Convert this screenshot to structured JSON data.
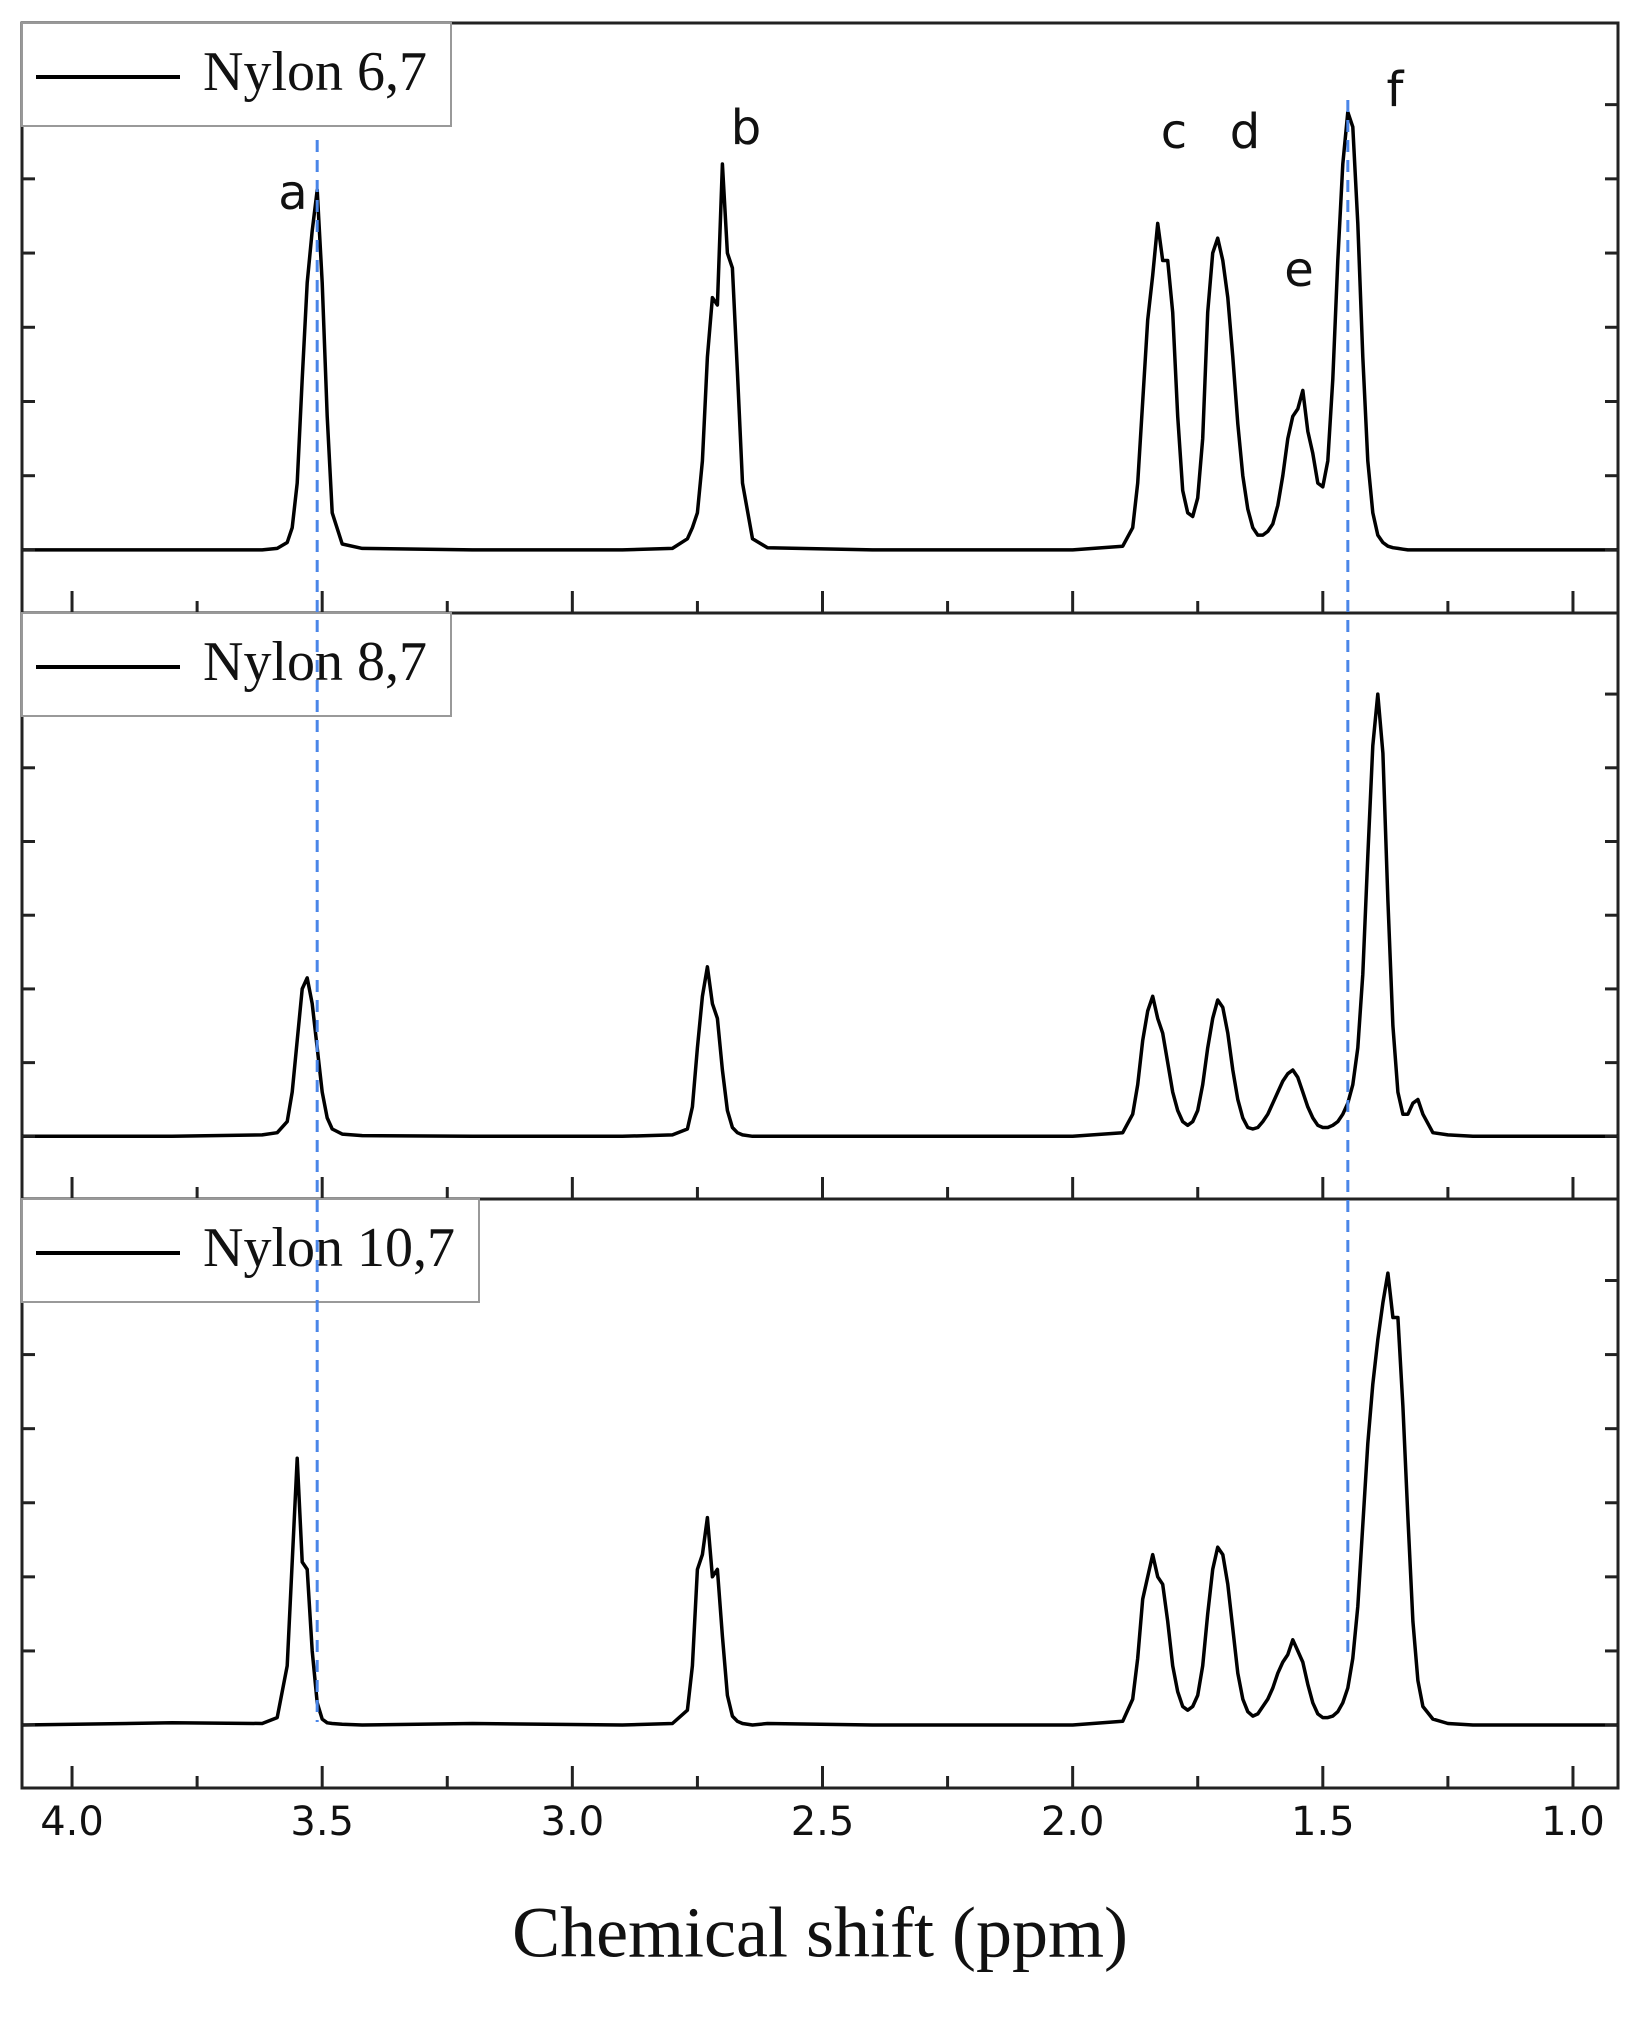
{
  "chart_data": [
    {
      "type": "line",
      "xlim": [
        4.1,
        0.91
      ],
      "ylim": [
        -0.85,
        7.1
      ],
      "xticks": [
        {
          "value": 4,
          "label": "4.0"
        },
        3.5,
        {
          "value": 3,
          "label": "3.0"
        },
        2.5,
        {
          "value": 2,
          "label": "2.0"
        },
        1.5,
        {
          "value": 1,
          "label": "1.0"
        }
      ],
      "xminorticks": [
        3.75,
        3.25,
        2.75,
        2.25,
        1.75,
        1.25
      ],
      "yticks": [
        0,
        1,
        2,
        3,
        4,
        5,
        6
      ],
      "annotations": [
        "a",
        "b",
        "c",
        "d",
        "e",
        "f"
      ],
      "reference_lines": [
        3.51,
        1.45
      ],
      "reference_color": "#4a86e8",
      "x": [
        4.1,
        3.8,
        3.62,
        3.59,
        3.57,
        3.56,
        3.55,
        3.54,
        3.53,
        3.52,
        3.51,
        3.5,
        3.49,
        3.48,
        3.46,
        3.42,
        3.2,
        2.9,
        2.8,
        2.77,
        2.76,
        2.75,
        2.74,
        2.73,
        2.72,
        2.71,
        2.7,
        2.69,
        2.68,
        2.67,
        2.66,
        2.64,
        2.61,
        2.4,
        2.0,
        1.9,
        1.88,
        1.87,
        1.86,
        1.85,
        1.84,
        1.83,
        1.82,
        1.81,
        1.8,
        1.79,
        1.78,
        1.77,
        1.76,
        1.75,
        1.74,
        1.73,
        1.72,
        1.71,
        1.7,
        1.69,
        1.68,
        1.67,
        1.66,
        1.65,
        1.64,
        1.63,
        1.62,
        1.61,
        1.6,
        1.59,
        1.58,
        1.57,
        1.56,
        1.55,
        1.54,
        1.53,
        1.52,
        1.51,
        1.5,
        1.49,
        1.48,
        1.47,
        1.46,
        1.45,
        1.44,
        1.43,
        1.42,
        1.41,
        1.4,
        1.39,
        1.38,
        1.37,
        1.36,
        1.35,
        1.34,
        1.33,
        1.32,
        1.31,
        1.3,
        1.28,
        1.25,
        1.2,
        1.1,
        0.91
      ],
      "series": [
        {
          "name": "Nylon 6,7",
          "color": "#000000",
          "values": [
            0,
            0,
            0,
            0.02,
            0.1,
            0.3,
            0.9,
            2.3,
            3.6,
            4.3,
            4.85,
            3.6,
            1.8,
            0.5,
            0.08,
            0.02,
            0,
            0,
            0.02,
            0.15,
            0.3,
            0.5,
            1.2,
            2.6,
            3.4,
            3.3,
            5.2,
            4.0,
            3.8,
            2.4,
            0.9,
            0.15,
            0.03,
            0,
            0,
            0.05,
            0.3,
            0.9,
            2.0,
            3.1,
            3.7,
            4.4,
            3.9,
            3.9,
            3.2,
            1.8,
            0.8,
            0.5,
            0.45,
            0.7,
            1.5,
            3.2,
            4.0,
            4.2,
            3.9,
            3.4,
            2.6,
            1.7,
            1.0,
            0.55,
            0.3,
            0.2,
            0.2,
            0.25,
            0.35,
            0.6,
            1.0,
            1.5,
            1.8,
            1.9,
            2.15,
            1.6,
            1.3,
            0.9,
            0.85,
            1.2,
            2.3,
            3.9,
            5.2,
            5.9,
            5.7,
            4.4,
            2.6,
            1.2,
            0.5,
            0.2,
            0.1,
            0.05,
            0.03,
            0.02,
            0.01,
            0,
            0,
            0,
            0,
            0,
            0,
            0,
            0,
            0
          ]
        }
      ]
    },
    {
      "type": "line",
      "xlim": [
        4.1,
        0.91
      ],
      "ylim": [
        -0.85,
        7.1
      ],
      "xticks": [
        {
          "value": 4,
          "label": "4.0"
        },
        3.5,
        {
          "value": 3,
          "label": "3.0"
        },
        2.5,
        {
          "value": 2,
          "label": "2.0"
        },
        1.5,
        {
          "value": 1,
          "label": "1.0"
        }
      ],
      "xminorticks": [
        3.75,
        3.25,
        2.75,
        2.25,
        1.75,
        1.25
      ],
      "yticks": [
        0,
        1,
        2,
        3,
        4,
        5,
        6
      ],
      "x": [
        4.1,
        3.8,
        3.62,
        3.59,
        3.57,
        3.56,
        3.55,
        3.54,
        3.53,
        3.52,
        3.51,
        3.5,
        3.49,
        3.48,
        3.46,
        3.42,
        3.2,
        2.9,
        2.8,
        2.77,
        2.76,
        2.75,
        2.74,
        2.73,
        2.72,
        2.71,
        2.7,
        2.69,
        2.68,
        2.67,
        2.66,
        2.64,
        2.61,
        2.4,
        2.0,
        1.9,
        1.88,
        1.87,
        1.86,
        1.85,
        1.84,
        1.83,
        1.82,
        1.81,
        1.8,
        1.79,
        1.78,
        1.77,
        1.76,
        1.75,
        1.74,
        1.73,
        1.72,
        1.71,
        1.7,
        1.69,
        1.68,
        1.67,
        1.66,
        1.65,
        1.64,
        1.63,
        1.62,
        1.61,
        1.6,
        1.59,
        1.58,
        1.57,
        1.56,
        1.55,
        1.54,
        1.53,
        1.52,
        1.51,
        1.5,
        1.49,
        1.48,
        1.47,
        1.46,
        1.45,
        1.44,
        1.43,
        1.42,
        1.41,
        1.4,
        1.39,
        1.38,
        1.37,
        1.36,
        1.35,
        1.34,
        1.33,
        1.32,
        1.31,
        1.3,
        1.28,
        1.25,
        1.2,
        1.1,
        0.91
      ],
      "series": [
        {
          "name": "Nylon 8,7",
          "color": "#000000",
          "values": [
            0,
            0,
            0.02,
            0.05,
            0.2,
            0.6,
            1.3,
            2.0,
            2.15,
            1.8,
            1.2,
            0.6,
            0.25,
            0.1,
            0.03,
            0.01,
            0,
            0,
            0.02,
            0.1,
            0.4,
            1.2,
            1.9,
            2.3,
            1.8,
            1.6,
            0.9,
            0.35,
            0.12,
            0.05,
            0.02,
            0,
            0,
            0,
            0,
            0.05,
            0.3,
            0.7,
            1.3,
            1.7,
            1.9,
            1.6,
            1.4,
            1.0,
            0.6,
            0.35,
            0.2,
            0.15,
            0.2,
            0.35,
            0.7,
            1.2,
            1.6,
            1.85,
            1.75,
            1.4,
            0.9,
            0.5,
            0.25,
            0.12,
            0.1,
            0.12,
            0.2,
            0.3,
            0.45,
            0.6,
            0.75,
            0.85,
            0.9,
            0.8,
            0.6,
            0.4,
            0.25,
            0.15,
            0.12,
            0.12,
            0.15,
            0.2,
            0.3,
            0.45,
            0.7,
            1.2,
            2.2,
            3.8,
            5.3,
            6.0,
            5.2,
            3.2,
            1.5,
            0.6,
            0.3,
            0.3,
            0.45,
            0.5,
            0.3,
            0.05,
            0.02,
            0,
            0,
            0
          ]
        }
      ]
    },
    {
      "type": "line",
      "xlim": [
        4.1,
        0.91
      ],
      "ylim": [
        -0.85,
        7.1
      ],
      "xticks": [
        {
          "value": 4,
          "label": "4.0"
        },
        3.5,
        {
          "value": 3,
          "label": "3.0"
        },
        2.5,
        {
          "value": 2,
          "label": "2.0"
        },
        1.5,
        {
          "value": 1,
          "label": "1.0"
        }
      ],
      "xminorticks": [
        3.75,
        3.25,
        2.75,
        2.25,
        1.75,
        1.25
      ],
      "yticks": [
        0,
        1,
        2,
        3,
        4,
        5,
        6
      ],
      "xlabel": "Chemical shift (ppm)",
      "x": [
        4.1,
        3.8,
        3.62,
        3.59,
        3.57,
        3.56,
        3.55,
        3.54,
        3.53,
        3.52,
        3.51,
        3.5,
        3.49,
        3.48,
        3.46,
        3.42,
        3.2,
        2.9,
        2.8,
        2.77,
        2.76,
        2.75,
        2.74,
        2.73,
        2.72,
        2.71,
        2.7,
        2.69,
        2.68,
        2.67,
        2.66,
        2.64,
        2.61,
        2.4,
        2.0,
        1.9,
        1.88,
        1.87,
        1.86,
        1.85,
        1.84,
        1.83,
        1.82,
        1.81,
        1.8,
        1.79,
        1.78,
        1.77,
        1.76,
        1.75,
        1.74,
        1.73,
        1.72,
        1.71,
        1.7,
        1.69,
        1.68,
        1.67,
        1.66,
        1.65,
        1.64,
        1.63,
        1.62,
        1.61,
        1.6,
        1.59,
        1.58,
        1.57,
        1.56,
        1.55,
        1.54,
        1.53,
        1.52,
        1.51,
        1.5,
        1.49,
        1.48,
        1.47,
        1.46,
        1.45,
        1.44,
        1.43,
        1.42,
        1.41,
        1.4,
        1.39,
        1.38,
        1.37,
        1.36,
        1.35,
        1.34,
        1.33,
        1.32,
        1.31,
        1.3,
        1.28,
        1.25,
        1.2,
        1.1,
        0.91
      ],
      "series": [
        {
          "name": "Nylon 10,7",
          "color": "#000000",
          "values": [
            0,
            0.03,
            0.02,
            0.1,
            0.8,
            2.2,
            3.6,
            2.2,
            2.1,
            1.0,
            0.3,
            0.08,
            0.03,
            0.02,
            0.01,
            0,
            0.02,
            0,
            0.02,
            0.2,
            0.8,
            2.1,
            2.3,
            2.8,
            2.0,
            2.1,
            1.2,
            0.4,
            0.12,
            0.05,
            0.02,
            0,
            0.02,
            0,
            0,
            0.05,
            0.35,
            0.9,
            1.7,
            2.0,
            2.3,
            2.0,
            1.9,
            1.4,
            0.8,
            0.45,
            0.25,
            0.2,
            0.25,
            0.4,
            0.8,
            1.5,
            2.1,
            2.4,
            2.3,
            1.9,
            1.3,
            0.7,
            0.35,
            0.18,
            0.12,
            0.15,
            0.25,
            0.35,
            0.5,
            0.7,
            0.85,
            0.95,
            1.15,
            1.0,
            0.85,
            0.55,
            0.3,
            0.15,
            0.1,
            0.1,
            0.12,
            0.18,
            0.3,
            0.5,
            0.9,
            1.6,
            2.7,
            3.8,
            4.6,
            5.2,
            5.7,
            6.1,
            5.5,
            5.5,
            4.3,
            2.8,
            1.4,
            0.6,
            0.25,
            0.08,
            0.02,
            0,
            0,
            0
          ]
        }
      ]
    }
  ]
}
